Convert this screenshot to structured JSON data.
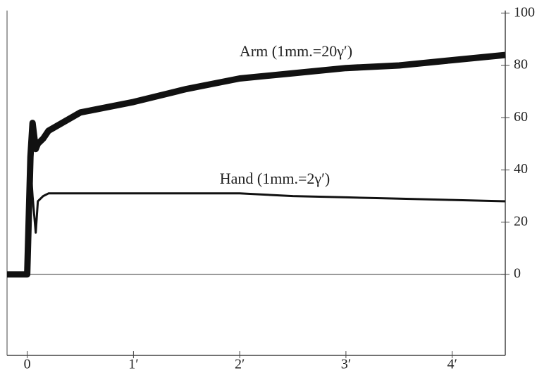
{
  "chart_data": {
    "type": "line",
    "annotations": [
      "Arm (1mm.=20γ′)",
      "Hand (1mm.=2γ′)"
    ],
    "x": [
      -0.19,
      0,
      0.03,
      0.05,
      0.08,
      0.1,
      0.15,
      0.2,
      0.5,
      1,
      1.5,
      2,
      2.5,
      3,
      3.5,
      4,
      4.5
    ],
    "series": [
      {
        "name": "Arm",
        "color": "#111111",
        "values": [
          0,
          0,
          45,
          58,
          48,
          50,
          52,
          55,
          62,
          66,
          71,
          75,
          77,
          79,
          80,
          82,
          84
        ]
      },
      {
        "name": "Hand",
        "color": "#111111",
        "values": [
          0,
          0,
          42,
          30,
          16,
          28,
          30,
          31,
          31,
          31,
          31,
          31,
          30,
          29.5,
          29,
          28.5,
          28
        ]
      }
    ],
    "xlim": [
      -0.19,
      4.5
    ],
    "xticks": [
      0,
      {
        "value": 1,
        "label": "1′"
      },
      {
        "value": 2,
        "label": "2′"
      },
      {
        "value": 3,
        "label": "3′"
      },
      {
        "value": 4,
        "label": "4′"
      }
    ],
    "ylim": [
      -31,
      101
    ],
    "yticks": [
      0,
      20,
      40,
      60,
      80,
      100
    ],
    "grid": false
  }
}
